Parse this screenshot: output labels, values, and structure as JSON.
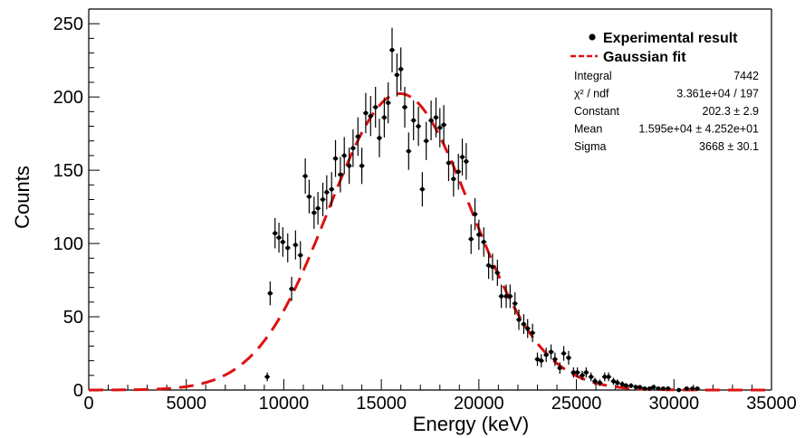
{
  "chart_data": {
    "type": "scatter",
    "xlabel": "Energy (keV)",
    "ylabel": "Counts",
    "xlim": [
      0,
      35000
    ],
    "ylim": [
      0,
      260
    ],
    "x_ticks": [
      "0",
      "5000",
      "10000",
      "15000",
      "20000",
      "25000",
      "30000",
      "35000"
    ],
    "y_ticks": [
      "0",
      "50",
      "100",
      "150",
      "200",
      "250"
    ],
    "grid": false,
    "legend_placement": "top-right",
    "legend": [
      {
        "label": "Experimental result",
        "marker": "point",
        "color": "#000000"
      },
      {
        "label": "Gaussian fit",
        "marker": "dashed-line",
        "color": "#dd1111"
      }
    ],
    "stats": [
      {
        "name": "Integral",
        "value": "7442"
      },
      {
        "name": "χ² / ndf",
        "value": "3.361e+04 / 197"
      },
      {
        "name": "Constant",
        "value": "202.3 ± 2.9"
      },
      {
        "name": "Mean",
        "value": "1.595e+04 ± 4.252e+01"
      },
      {
        "name": "Sigma",
        "value": "3668 ± 30.1"
      }
    ],
    "fit": {
      "constant": 202.3,
      "mean": 15950,
      "sigma": 3668
    },
    "series": [
      {
        "name": "Experimental result",
        "x": [
          9150,
          9300,
          9550,
          9750,
          9950,
          10200,
          10400,
          10600,
          10850,
          11100,
          11300,
          11550,
          11750,
          12000,
          12200,
          12450,
          12650,
          12900,
          13100,
          13350,
          13550,
          13800,
          14000,
          14200,
          14450,
          14700,
          14900,
          15150,
          15350,
          15550,
          15800,
          16000,
          16200,
          16400,
          16650,
          16900,
          17100,
          17300,
          17550,
          17800,
          18000,
          18200,
          18450,
          18700,
          18950,
          19150,
          19350,
          19600,
          19800,
          20000,
          20250,
          20500,
          20700,
          20950,
          21150,
          21400,
          21600,
          21850,
          22050,
          22300,
          22500,
          22750,
          23000,
          23200,
          23450,
          23700,
          23900,
          24150,
          24350,
          24600,
          24850,
          25050,
          25300,
          25500,
          25750,
          25950,
          26200,
          26450,
          26650,
          26900,
          27100,
          27350,
          27550,
          27800,
          28050,
          28250,
          28500,
          28750,
          28950,
          29200,
          29450,
          29700,
          30250,
          30650,
          30950,
          31200
        ],
        "y": [
          9,
          66,
          107,
          104,
          101,
          97,
          69,
          99,
          92,
          146,
          132,
          121,
          124,
          130,
          135,
          137,
          158,
          147,
          160,
          153,
          165,
          173,
          153,
          189,
          187,
          193,
          172,
          186,
          196,
          232,
          215,
          219,
          193,
          163,
          184,
          180,
          137,
          170,
          184,
          186,
          179,
          181,
          155,
          144,
          149,
          159,
          156,
          103,
          120,
          106,
          101,
          85,
          84,
          80,
          64,
          64,
          64,
          59,
          48,
          45,
          42,
          39,
          21,
          20,
          24,
          26,
          21,
          15,
          25,
          22,
          12,
          12,
          10,
          12,
          9,
          6,
          5,
          9,
          9,
          6,
          5,
          4,
          3,
          3,
          2,
          2,
          1,
          1,
          2,
          1,
          1,
          1,
          0,
          1,
          1,
          1
        ]
      }
    ]
  }
}
